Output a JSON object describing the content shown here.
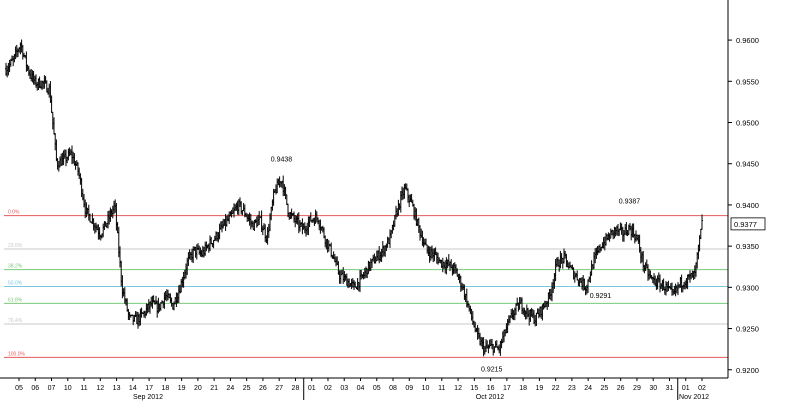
{
  "chart_data": {
    "type": "candlestick",
    "title": "",
    "xlabel": "",
    "ylabel": "",
    "ylim": [
      0.919,
      0.9645
    ],
    "grid": false,
    "colors": {
      "candle": "#000000",
      "axis": "#000000"
    },
    "x_ticks": [
      "05",
      "06",
      "07",
      "10",
      "11",
      "12",
      "13",
      "14",
      "17",
      "18",
      "19",
      "20",
      "21",
      "24",
      "25",
      "26",
      "27",
      "28",
      "01",
      "02",
      "03",
      "04",
      "05",
      "08",
      "09",
      "10",
      "11",
      "12",
      "15",
      "16",
      "17",
      "18",
      "19",
      "22",
      "23",
      "24",
      "25",
      "26",
      "29",
      "30",
      "31",
      "01",
      "02"
    ],
    "month_labels": [
      "Sep 2012",
      "Oct 2012",
      "Nov 2012"
    ],
    "y_ticks": [
      "0.9600",
      "0.9550",
      "0.9500",
      "0.9450",
      "0.9400",
      "0.9350",
      "0.9300",
      "0.9250",
      "0.9200"
    ],
    "last_price": "0.9377",
    "price_path": [
      [
        0,
        0.9565
      ],
      [
        1,
        0.9575
      ],
      [
        2,
        0.9596
      ],
      [
        3,
        0.9565
      ],
      [
        4,
        0.9548
      ],
      [
        5,
        0.9548
      ],
      [
        6,
        0.954
      ],
      [
        7,
        0.945
      ],
      [
        8,
        0.9455
      ],
      [
        9,
        0.9462
      ],
      [
        10,
        0.944
      ],
      [
        11,
        0.9392
      ],
      [
        12,
        0.938
      ],
      [
        13,
        0.9365
      ],
      [
        14,
        0.938
      ],
      [
        15,
        0.94
      ],
      [
        16,
        0.93
      ],
      [
        17,
        0.9262
      ],
      [
        18,
        0.926
      ],
      [
        19,
        0.9268
      ],
      [
        20,
        0.928
      ],
      [
        21,
        0.9275
      ],
      [
        22,
        0.929
      ],
      [
        23,
        0.9278
      ],
      [
        24,
        0.93
      ],
      [
        25,
        0.933
      ],
      [
        26,
        0.9345
      ],
      [
        27,
        0.934
      ],
      [
        28,
        0.9352
      ],
      [
        29,
        0.9362
      ],
      [
        30,
        0.9375
      ],
      [
        31,
        0.9385
      ],
      [
        32,
        0.94
      ],
      [
        33,
        0.939
      ],
      [
        34,
        0.9375
      ],
      [
        35,
        0.9382
      ],
      [
        36,
        0.936
      ],
      [
        37,
        0.9415
      ],
      [
        38,
        0.9432
      ],
      [
        39,
        0.939
      ],
      [
        40,
        0.938
      ],
      [
        41,
        0.937
      ],
      [
        42,
        0.9382
      ],
      [
        43,
        0.9385
      ],
      [
        44,
        0.936
      ],
      [
        45,
        0.934
      ],
      [
        46,
        0.9315
      ],
      [
        47,
        0.9308
      ],
      [
        48,
        0.93
      ],
      [
        49,
        0.931
      ],
      [
        50,
        0.9325
      ],
      [
        51,
        0.9335
      ],
      [
        52,
        0.9345
      ],
      [
        53,
        0.936
      ],
      [
        54,
        0.9395
      ],
      [
        55,
        0.942
      ],
      [
        56,
        0.94
      ],
      [
        57,
        0.937
      ],
      [
        58,
        0.9345
      ],
      [
        59,
        0.934
      ],
      [
        60,
        0.933
      ],
      [
        61,
        0.9328
      ],
      [
        62,
        0.932
      ],
      [
        63,
        0.93
      ],
      [
        64,
        0.927
      ],
      [
        65,
        0.924
      ],
      [
        66,
        0.9225
      ],
      [
        67,
        0.9228
      ],
      [
        68,
        0.9225
      ],
      [
        69,
        0.925
      ],
      [
        70,
        0.927
      ],
      [
        71,
        0.928
      ],
      [
        72,
        0.9268
      ],
      [
        73,
        0.9262
      ],
      [
        74,
        0.9275
      ],
      [
        75,
        0.929
      ],
      [
        76,
        0.933
      ],
      [
        77,
        0.9335
      ],
      [
        78,
        0.932
      ],
      [
        79,
        0.931
      ],
      [
        80,
        0.93
      ],
      [
        81,
        0.933
      ],
      [
        82,
        0.935
      ],
      [
        83,
        0.936
      ],
      [
        84,
        0.937
      ],
      [
        85,
        0.9365
      ],
      [
        86,
        0.9372
      ],
      [
        87,
        0.936
      ],
      [
        88,
        0.9325
      ],
      [
        89,
        0.931
      ],
      [
        90,
        0.9305
      ],
      [
        91,
        0.93
      ],
      [
        92,
        0.929
      ],
      [
        93,
        0.9305
      ],
      [
        94,
        0.931
      ],
      [
        95,
        0.9315
      ],
      [
        96,
        0.9377
      ]
    ],
    "annotations": [
      {
        "label": "0.9438",
        "value": 0.9438,
        "index": 38
      },
      {
        "label": "0.9387",
        "value": 0.9387,
        "index": 86
      },
      {
        "label": "0.9291",
        "value": 0.9291,
        "index": 82
      },
      {
        "label": "0.9215",
        "value": 0.9215,
        "index": 67
      }
    ],
    "fib_levels": [
      {
        "label": "0.0%",
        "value": 0.9387,
        "color": "#e85a5a"
      },
      {
        "label": "23.6%",
        "value": 0.93465,
        "color": "#c8c8c8"
      },
      {
        "label": "38.2%",
        "value": 0.93215,
        "color": "#7ac87a"
      },
      {
        "label": "50.0%",
        "value": 0.9301,
        "color": "#7ac8e0"
      },
      {
        "label": "61.8%",
        "value": 0.92805,
        "color": "#7ac87a"
      },
      {
        "label": "76.4%",
        "value": 0.92555,
        "color": "#c8c8c8"
      },
      {
        "label": "100.0%",
        "value": 0.9215,
        "color": "#e85a5a"
      }
    ]
  }
}
